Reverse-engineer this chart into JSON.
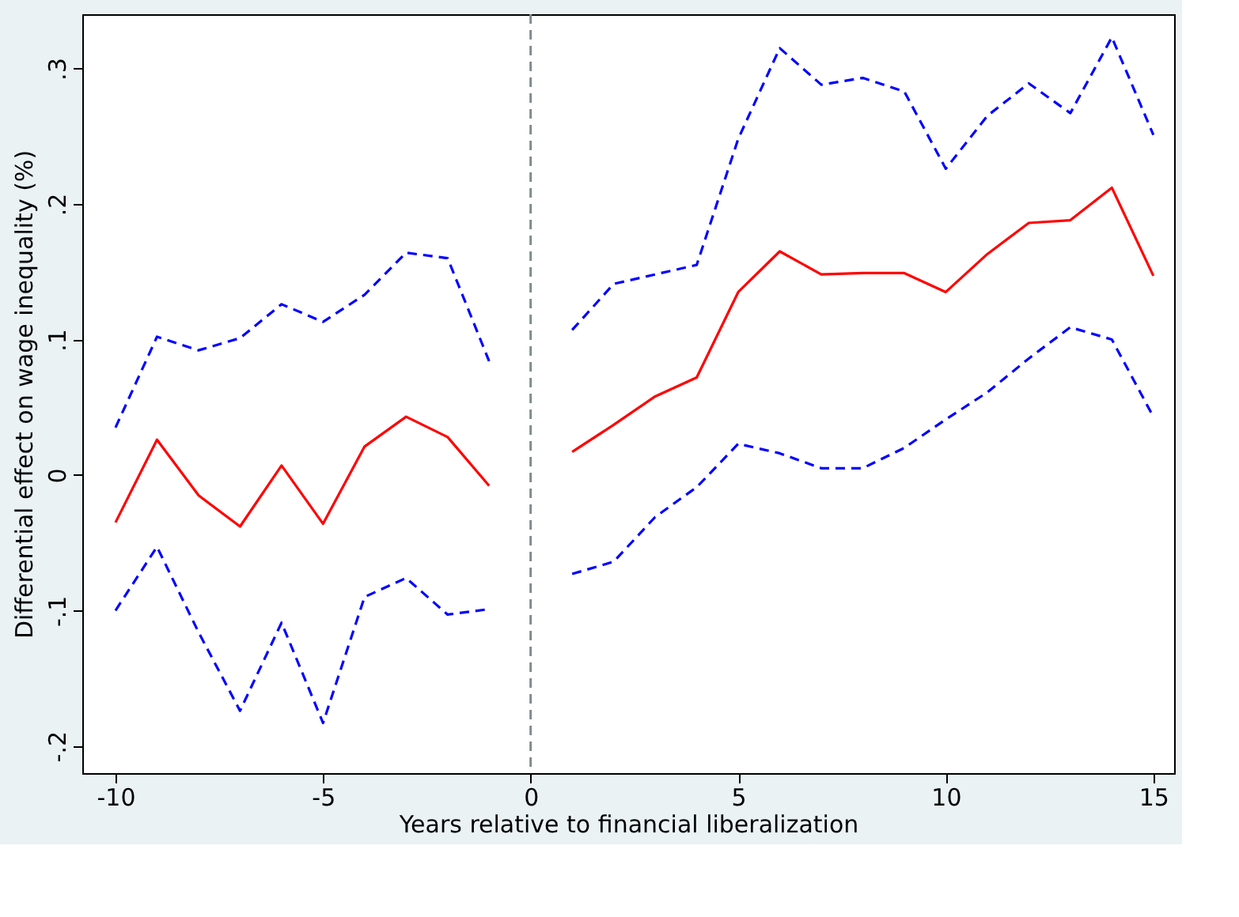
{
  "chart_data": {
    "type": "line",
    "xlabel": "Years relative to financial liberalization",
    "ylabel": "Differential effect on wage inequality (%)",
    "x": [
      -10,
      -9,
      -8,
      -7,
      -6,
      -5,
      -4,
      -3,
      -2,
      -1,
      0,
      1,
      2,
      3,
      4,
      5,
      6,
      7,
      8,
      9,
      10,
      11,
      12,
      13,
      14,
      15
    ],
    "series": [
      {
        "color": "#0000ff",
        "line_style": "dashed",
        "values": [
          0.035,
          0.102,
          0.092,
          0.101,
          0.126,
          0.113,
          0.133,
          0.164,
          0.16,
          0.084,
          null,
          0.107,
          0.141,
          0.148,
          0.155,
          0.248,
          0.315,
          0.288,
          0.293,
          0.283,
          0.226,
          0.265,
          0.289,
          0.267,
          0.323,
          0.251
        ]
      },
      {
        "color": "#ff0000",
        "line_style": "solid",
        "values": [
          -0.035,
          0.026,
          -0.015,
          -0.038,
          0.007,
          -0.036,
          0.021,
          0.043,
          0.028,
          -0.008,
          null,
          0.017,
          0.037,
          0.058,
          0.072,
          0.135,
          0.165,
          0.148,
          0.149,
          0.149,
          0.135,
          0.163,
          0.186,
          0.188,
          0.212,
          0.147
        ]
      },
      {
        "color": "#0000ff",
        "line_style": "dashed",
        "values": [
          -0.1,
          -0.053,
          -0.116,
          -0.174,
          -0.109,
          -0.183,
          -0.09,
          -0.076,
          -0.103,
          -0.099,
          null,
          -0.073,
          -0.064,
          -0.031,
          -0.009,
          0.023,
          0.016,
          0.005,
          0.005,
          0.02,
          0.041,
          0.061,
          0.086,
          0.109,
          0.1,
          0.043
        ]
      }
    ],
    "xlim": [
      -10.8,
      15.5
    ],
    "xticks": [
      -10,
      -5,
      0,
      5,
      10,
      15
    ],
    "ylim": [
      -0.22,
      0.34
    ],
    "yticks": [
      {
        "value": -0.2,
        "label": "-.2"
      },
      {
        "value": -0.1,
        "label": "-.1"
      },
      0,
      {
        "value": 0.1,
        "label": ".1"
      },
      {
        "value": 0.2,
        "label": ".2"
      },
      {
        "value": 0.3,
        "label": ".3"
      }
    ],
    "ref_lines": [
      {
        "axis": "x",
        "value": 0,
        "color": "#7f8c8c",
        "line_style": "dashed"
      }
    ],
    "grid": false
  }
}
